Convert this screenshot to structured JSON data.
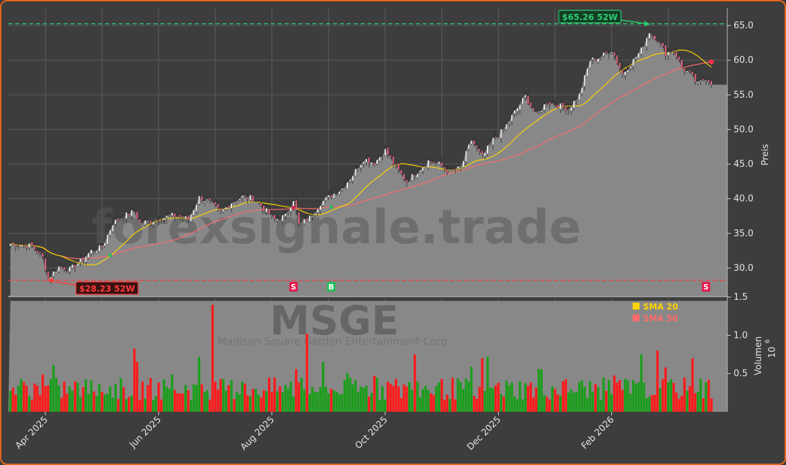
{
  "chart_data": {
    "type": "candlestick",
    "ticker": "MSGE",
    "company": "Madison Square Garden Entertainment Corp.",
    "watermark": "forexsignale.trade",
    "price_axis_label": "Preis",
    "volume_axis_label": "Volumen",
    "volume_scale_label": "10",
    "volume_scale_exp": "6",
    "price_ticks": [
      "30.0",
      "35.0",
      "40.0",
      "45.0",
      "50.0",
      "55.0",
      "60.0",
      "65.0"
    ],
    "volume_ticks": [
      "0.5",
      "1.0",
      "1.5"
    ],
    "x_ticks": [
      "Apr 2025",
      "Jun 2025",
      "Aug 2025",
      "Oct 2025",
      "Dec 2025",
      "Feb 2026"
    ],
    "ylim_price": [
      26.0,
      67.5
    ],
    "ylim_volume": [
      0,
      1.5
    ],
    "high_52w_label": "$65.26 52W",
    "high_52w": 65.26,
    "low_52w_label": "$28.23 52W",
    "low_52w": 28.23,
    "legend": [
      {
        "name": "SMA 20",
        "color": "#ffd400"
      },
      {
        "name": "SMA 50",
        "color": "#ff6b6b"
      }
    ],
    "signals": [
      {
        "type": "B",
        "label": "B",
        "color": "#1fbf55"
      },
      {
        "type": "S",
        "label": "S",
        "color": "#e8174a"
      },
      {
        "type": "B",
        "label": "B",
        "color": "#1fbf55"
      },
      {
        "type": "S",
        "label": "S",
        "color": "#e8174a"
      }
    ],
    "price_keypoints": [
      [
        0,
        33.5
      ],
      [
        8,
        33.2
      ],
      [
        12,
        31.5
      ],
      [
        14,
        28.5
      ],
      [
        18,
        30.2
      ],
      [
        22,
        29.8
      ],
      [
        26,
        31.0
      ],
      [
        30,
        32.5
      ],
      [
        34,
        33.0
      ],
      [
        38,
        36.5
      ],
      [
        42,
        37.5
      ],
      [
        46,
        38.2
      ],
      [
        48,
        36.5
      ],
      [
        52,
        36.8
      ],
      [
        56,
        37.2
      ],
      [
        60,
        37.6
      ],
      [
        64,
        37.4
      ],
      [
        66,
        37.0
      ],
      [
        70,
        40.2
      ],
      [
        74,
        39.5
      ],
      [
        78,
        38.0
      ],
      [
        82,
        39.5
      ],
      [
        86,
        40.3
      ],
      [
        90,
        40.1
      ],
      [
        94,
        38.6
      ],
      [
        98,
        37.0
      ],
      [
        102,
        37.5
      ],
      [
        105,
        40.0
      ],
      [
        107,
        36.2
      ],
      [
        111,
        37.3
      ],
      [
        115,
        39.4
      ],
      [
        119,
        40.5
      ],
      [
        123,
        41.5
      ],
      [
        127,
        43.5
      ],
      [
        131,
        45.8
      ],
      [
        135,
        45.2
      ],
      [
        139,
        47.0
      ],
      [
        143,
        44.5
      ],
      [
        147,
        42.5
      ],
      [
        151,
        44.0
      ],
      [
        155,
        45.5
      ],
      [
        159,
        45.0
      ],
      [
        163,
        43.8
      ],
      [
        167,
        44.5
      ],
      [
        171,
        48.5
      ],
      [
        175,
        46.0
      ],
      [
        179,
        48.5
      ],
      [
        183,
        50.0
      ],
      [
        187,
        52.5
      ],
      [
        191,
        54.8
      ],
      [
        195,
        52.0
      ],
      [
        199,
        54.0
      ],
      [
        203,
        53.5
      ],
      [
        207,
        53.0
      ],
      [
        211,
        55.0
      ],
      [
        215,
        60.0
      ],
      [
        219,
        60.5
      ],
      [
        223,
        61.5
      ],
      [
        227,
        58.0
      ],
      [
        231,
        60.0
      ],
      [
        234,
        61.5
      ],
      [
        237,
        64.2
      ],
      [
        240,
        63.0
      ],
      [
        243,
        61.0
      ],
      [
        246,
        61.5
      ],
      [
        249,
        59.0
      ],
      [
        252,
        58.0
      ],
      [
        255,
        56.5
      ],
      [
        258,
        57.5
      ],
      [
        260,
        56.8
      ]
    ],
    "n_candles": 261,
    "sma20_last": 59.6
  }
}
